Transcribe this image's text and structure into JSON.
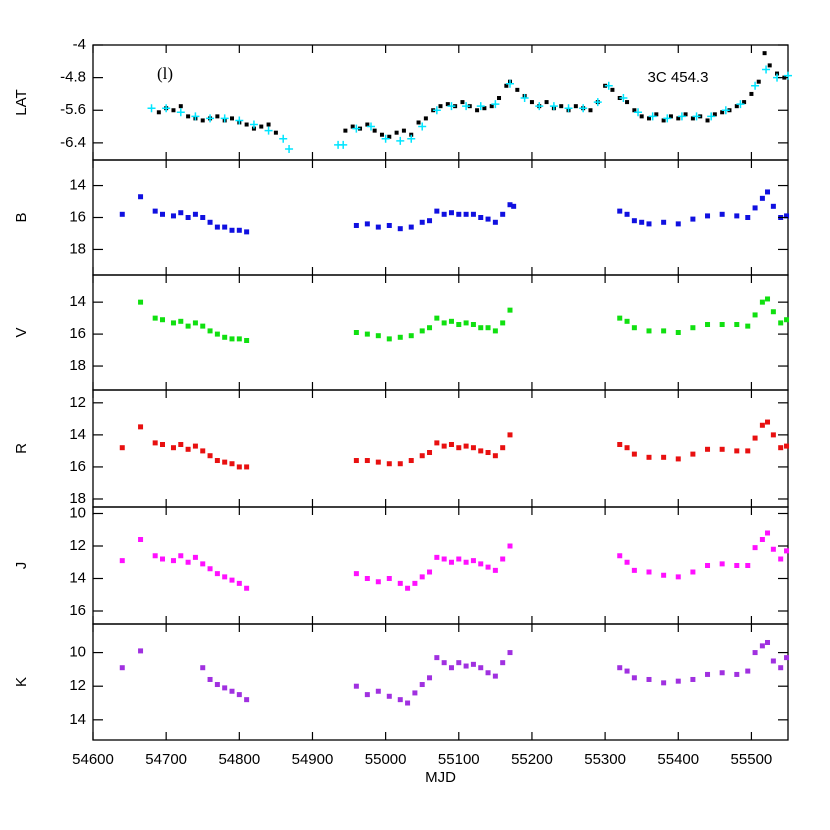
{
  "chart_data": [
    {
      "type": "scatter",
      "y_label": "LAT",
      "ylim": [
        -6.82,
        -4
      ],
      "yticks": [
        -4,
        -4.8,
        -5.6,
        -6.4
      ],
      "annotations": [
        "(l)",
        "3C 454.3"
      ],
      "series": [
        {
          "color": "#000000",
          "marker": "dot",
          "x": [
            54690,
            54700,
            54710,
            54720,
            54730,
            54740,
            54750,
            54760,
            54770,
            54780,
            54790,
            54800,
            54810,
            54820,
            54830,
            54840,
            54850,
            54945,
            54955,
            54965,
            54975,
            54985,
            54995,
            55005,
            55015,
            55025,
            55035,
            55045,
            55055,
            55065,
            55075,
            55085,
            55095,
            55105,
            55115,
            55125,
            55135,
            55145,
            55155,
            55165,
            55170,
            55180,
            55190,
            55200,
            55210,
            55220,
            55230,
            55240,
            55250,
            55260,
            55270,
            55280,
            55290,
            55300,
            55310,
            55320,
            55330,
            55340,
            55350,
            55360,
            55370,
            55380,
            55390,
            55400,
            55410,
            55420,
            55430,
            55440,
            55450,
            55460,
            55470,
            55480,
            55490,
            55500,
            55510,
            55518,
            55525,
            55535,
            55545
          ],
          "values": [
            -5.65,
            -5.55,
            -5.6,
            -5.5,
            -5.75,
            -5.8,
            -5.85,
            -5.8,
            -5.75,
            -5.85,
            -5.8,
            -5.9,
            -5.95,
            -6.05,
            -6.0,
            -5.95,
            -6.15,
            -6.1,
            -6.0,
            -6.05,
            -5.95,
            -6.1,
            -6.2,
            -6.25,
            -6.15,
            -6.1,
            -6.2,
            -5.9,
            -5.8,
            -5.6,
            -5.5,
            -5.45,
            -5.5,
            -5.4,
            -5.5,
            -5.6,
            -5.55,
            -5.5,
            -5.3,
            -5.0,
            -4.9,
            -5.1,
            -5.25,
            -5.4,
            -5.5,
            -5.4,
            -5.55,
            -5.5,
            -5.6,
            -5.5,
            -5.55,
            -5.6,
            -5.4,
            -5.0,
            -5.1,
            -5.3,
            -5.4,
            -5.6,
            -5.75,
            -5.8,
            -5.7,
            -5.85,
            -5.75,
            -5.8,
            -5.7,
            -5.8,
            -5.75,
            -5.85,
            -5.7,
            -5.65,
            -5.6,
            -5.5,
            -5.4,
            -5.2,
            -4.9,
            -4.2,
            -4.5,
            -4.7,
            -4.8
          ]
        },
        {
          "color": "#00e5ff",
          "marker": "plus",
          "x": [
            54680,
            54700,
            54720,
            54740,
            54760,
            54780,
            54800,
            54820,
            54840,
            54860,
            54868,
            54935,
            54942,
            54960,
            54980,
            55000,
            55020,
            55035,
            55050,
            55070,
            55090,
            55110,
            55130,
            55150,
            55170,
            55190,
            55210,
            55230,
            55250,
            55270,
            55290,
            55305,
            55325,
            55345,
            55365,
            55385,
            55405,
            55425,
            55445,
            55465,
            55485,
            55505,
            55520,
            55535,
            55550
          ],
          "values": [
            -5.55,
            -5.55,
            -5.65,
            -5.75,
            -5.8,
            -5.8,
            -5.85,
            -5.95,
            -6.1,
            -6.3,
            -6.55,
            -6.45,
            -6.45,
            -6.05,
            -6.0,
            -6.3,
            -6.35,
            -6.3,
            -6.0,
            -5.6,
            -5.5,
            -5.5,
            -5.5,
            -5.45,
            -4.95,
            -5.3,
            -5.5,
            -5.5,
            -5.55,
            -5.55,
            -5.4,
            -5.0,
            -5.3,
            -5.65,
            -5.75,
            -5.8,
            -5.75,
            -5.75,
            -5.75,
            -5.6,
            -5.45,
            -5.0,
            -4.6,
            -4.8,
            -4.75
          ]
        }
      ]
    },
    {
      "type": "scatter",
      "y_label": "B",
      "ylim": [
        19.6,
        12.4
      ],
      "yticks": [
        14,
        16,
        18
      ],
      "series": [
        {
          "color": "#1010e0",
          "marker": "square",
          "x": [
            54640,
            54665,
            54685,
            54695,
            54710,
            54720,
            54730,
            54740,
            54750,
            54760,
            54770,
            54780,
            54790,
            54800,
            54810,
            54960,
            54975,
            54990,
            55005,
            55020,
            55035,
            55050,
            55060,
            55070,
            55080,
            55090,
            55100,
            55110,
            55120,
            55130,
            55140,
            55150,
            55160,
            55170,
            55175,
            55320,
            55330,
            55340,
            55350,
            55360,
            55380,
            55400,
            55420,
            55440,
            55460,
            55480,
            55495,
            55505,
            55515,
            55522,
            55530,
            55540,
            55548
          ],
          "values": [
            15.8,
            14.7,
            15.6,
            15.8,
            15.9,
            15.7,
            16.0,
            15.8,
            16.0,
            16.3,
            16.6,
            16.6,
            16.8,
            16.8,
            16.9,
            16.5,
            16.4,
            16.6,
            16.5,
            16.7,
            16.6,
            16.3,
            16.2,
            15.6,
            15.8,
            15.7,
            15.8,
            15.8,
            15.8,
            16.0,
            16.1,
            16.3,
            15.8,
            15.2,
            15.3,
            15.6,
            15.8,
            16.2,
            16.3,
            16.4,
            16.3,
            16.4,
            16.1,
            15.9,
            15.8,
            15.9,
            16.0,
            15.4,
            14.8,
            14.4,
            15.3,
            16.0,
            15.9
          ]
        }
      ]
    },
    {
      "type": "scatter",
      "y_label": "V",
      "ylim": [
        19.5,
        12.3
      ],
      "yticks": [
        14,
        16,
        18
      ],
      "series": [
        {
          "color": "#10e010",
          "marker": "square",
          "x": [
            54665,
            54685,
            54695,
            54710,
            54720,
            54730,
            54740,
            54750,
            54760,
            54770,
            54780,
            54790,
            54800,
            54810,
            54960,
            54975,
            54990,
            55005,
            55020,
            55035,
            55050,
            55060,
            55070,
            55080,
            55090,
            55100,
            55110,
            55120,
            55130,
            55140,
            55150,
            55160,
            55170,
            55320,
            55330,
            55340,
            55360,
            55380,
            55400,
            55420,
            55440,
            55460,
            55480,
            55495,
            55505,
            55515,
            55522,
            55530,
            55540,
            55548
          ],
          "values": [
            14.0,
            15.0,
            15.1,
            15.3,
            15.2,
            15.5,
            15.3,
            15.5,
            15.8,
            16.0,
            16.2,
            16.3,
            16.3,
            16.4,
            15.9,
            16.0,
            16.1,
            16.3,
            16.2,
            16.1,
            15.8,
            15.6,
            15.0,
            15.3,
            15.2,
            15.4,
            15.3,
            15.4,
            15.6,
            15.6,
            15.8,
            15.3,
            14.5,
            15.0,
            15.2,
            15.6,
            15.8,
            15.8,
            15.9,
            15.6,
            15.4,
            15.4,
            15.4,
            15.5,
            14.8,
            14.0,
            13.8,
            14.6,
            15.3,
            15.1
          ]
        }
      ]
    },
    {
      "type": "scatter",
      "y_label": "R",
      "ylim": [
        18.5,
        11.2
      ],
      "yticks": [
        12,
        14,
        16,
        18
      ],
      "series": [
        {
          "color": "#e81010",
          "marker": "square",
          "x": [
            54640,
            54665,
            54685,
            54695,
            54710,
            54720,
            54730,
            54740,
            54750,
            54760,
            54770,
            54780,
            54790,
            54800,
            54810,
            54960,
            54975,
            54990,
            55005,
            55020,
            55035,
            55050,
            55060,
            55070,
            55080,
            55090,
            55100,
            55110,
            55120,
            55130,
            55140,
            55150,
            55160,
            55170,
            55320,
            55330,
            55340,
            55360,
            55380,
            55400,
            55420,
            55440,
            55460,
            55480,
            55495,
            55505,
            55515,
            55522,
            55530,
            55540,
            55548
          ],
          "values": [
            14.8,
            13.5,
            14.5,
            14.6,
            14.8,
            14.6,
            14.9,
            14.7,
            15.0,
            15.3,
            15.6,
            15.7,
            15.8,
            16.0,
            16.0,
            15.6,
            15.6,
            15.7,
            15.8,
            15.8,
            15.6,
            15.3,
            15.1,
            14.5,
            14.7,
            14.6,
            14.8,
            14.7,
            14.8,
            15.0,
            15.1,
            15.3,
            14.8,
            14.0,
            14.6,
            14.8,
            15.2,
            15.4,
            15.4,
            15.5,
            15.2,
            14.9,
            14.9,
            15.0,
            15.0,
            14.2,
            13.4,
            13.2,
            14.0,
            14.8,
            14.7
          ]
        }
      ]
    },
    {
      "type": "scatter",
      "y_label": "J",
      "ylim": [
        16.8,
        9.6
      ],
      "yticks": [
        10,
        12,
        14,
        16
      ],
      "series": [
        {
          "color": "#ff10ff",
          "marker": "square",
          "x": [
            54640,
            54665,
            54685,
            54695,
            54710,
            54720,
            54730,
            54740,
            54750,
            54760,
            54770,
            54780,
            54790,
            54800,
            54810,
            54960,
            54975,
            54990,
            55005,
            55020,
            55030,
            55040,
            55050,
            55060,
            55070,
            55080,
            55090,
            55100,
            55110,
            55120,
            55130,
            55140,
            55150,
            55160,
            55170,
            55320,
            55330,
            55340,
            55360,
            55380,
            55400,
            55420,
            55440,
            55460,
            55480,
            55495,
            55505,
            55515,
            55522,
            55530,
            55540,
            55548
          ],
          "values": [
            12.9,
            11.6,
            12.6,
            12.8,
            12.9,
            12.6,
            13.0,
            12.7,
            13.1,
            13.4,
            13.7,
            13.9,
            14.1,
            14.3,
            14.6,
            13.7,
            14.0,
            14.2,
            14.0,
            14.3,
            14.6,
            14.3,
            13.9,
            13.6,
            12.7,
            12.8,
            13.0,
            12.8,
            13.0,
            12.9,
            13.1,
            13.3,
            13.5,
            12.8,
            12.0,
            12.6,
            13.0,
            13.5,
            13.6,
            13.8,
            13.9,
            13.6,
            13.2,
            13.1,
            13.2,
            13.2,
            12.1,
            11.6,
            11.2,
            12.2,
            12.8,
            12.3
          ]
        }
      ]
    },
    {
      "type": "scatter",
      "y_label": "K",
      "ylim": [
        15.2,
        8.3
      ],
      "yticks": [
        10,
        12,
        14
      ],
      "x_label": "MJD",
      "xlim": [
        54600,
        55550
      ],
      "xticks": [
        54600,
        54700,
        54800,
        54900,
        55000,
        55100,
        55200,
        55300,
        55400,
        55500
      ],
      "series": [
        {
          "color": "#a030e0",
          "marker": "square",
          "x": [
            54640,
            54665,
            54750,
            54760,
            54770,
            54780,
            54790,
            54800,
            54810,
            54960,
            54975,
            54990,
            55005,
            55020,
            55030,
            55040,
            55050,
            55060,
            55070,
            55080,
            55090,
            55100,
            55110,
            55120,
            55130,
            55140,
            55150,
            55160,
            55170,
            55320,
            55330,
            55340,
            55360,
            55380,
            55400,
            55420,
            55440,
            55460,
            55480,
            55495,
            55505,
            55515,
            55522,
            55530,
            55540,
            55548
          ],
          "values": [
            10.9,
            9.9,
            10.9,
            11.6,
            11.9,
            12.1,
            12.3,
            12.5,
            12.8,
            12.0,
            12.5,
            12.3,
            12.6,
            12.8,
            13.0,
            12.4,
            11.9,
            11.5,
            10.3,
            10.6,
            10.9,
            10.6,
            10.8,
            10.7,
            10.9,
            11.2,
            11.4,
            10.6,
            10.0,
            10.9,
            11.1,
            11.5,
            11.6,
            11.8,
            11.7,
            11.6,
            11.3,
            11.2,
            11.3,
            11.1,
            10.0,
            9.6,
            9.4,
            10.5,
            10.9,
            10.3
          ]
        }
      ]
    }
  ]
}
